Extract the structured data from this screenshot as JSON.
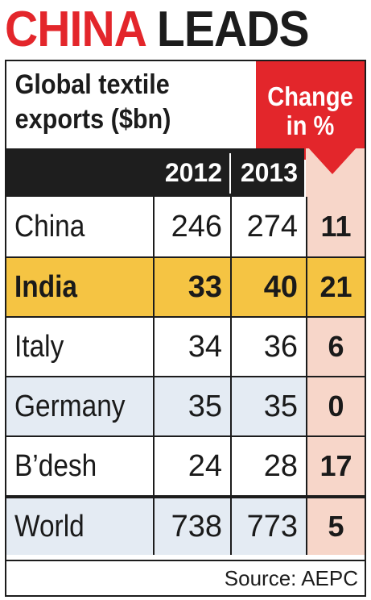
{
  "headline": {
    "word1": "CHINA",
    "word2": "LEADS"
  },
  "chart_data": {
    "type": "table",
    "title_line1": "Global textile",
    "title_line2": "exports ($bn)",
    "change_label_line1": "Change",
    "change_label_line2": "in %",
    "columns": [
      "2012",
      "2013"
    ],
    "rows": [
      {
        "country": "China",
        "v2012": "246",
        "v2013": "274",
        "change": "11",
        "style": "white"
      },
      {
        "country": "India",
        "v2012": "33",
        "v2013": "40",
        "change": "21",
        "style": "gold"
      },
      {
        "country": "Italy",
        "v2012": "34",
        "v2013": "36",
        "change": "6",
        "style": "white"
      },
      {
        "country": "Germany",
        "v2012": "35",
        "v2013": "35",
        "change": "0",
        "style": "blue"
      },
      {
        "country": "B’desh",
        "v2012": "24",
        "v2013": "28",
        "change": "17",
        "style": "white"
      },
      {
        "country": "World",
        "v2012": "738",
        "v2013": "773",
        "change": "5",
        "style": "blue world"
      }
    ]
  },
  "source": "Source: AEPC",
  "colors": {
    "accent_red": "#e3262b",
    "highlight_gold": "#f5c443",
    "row_blue": "#e4ebf3",
    "change_pink": "#f7d6c9"
  }
}
